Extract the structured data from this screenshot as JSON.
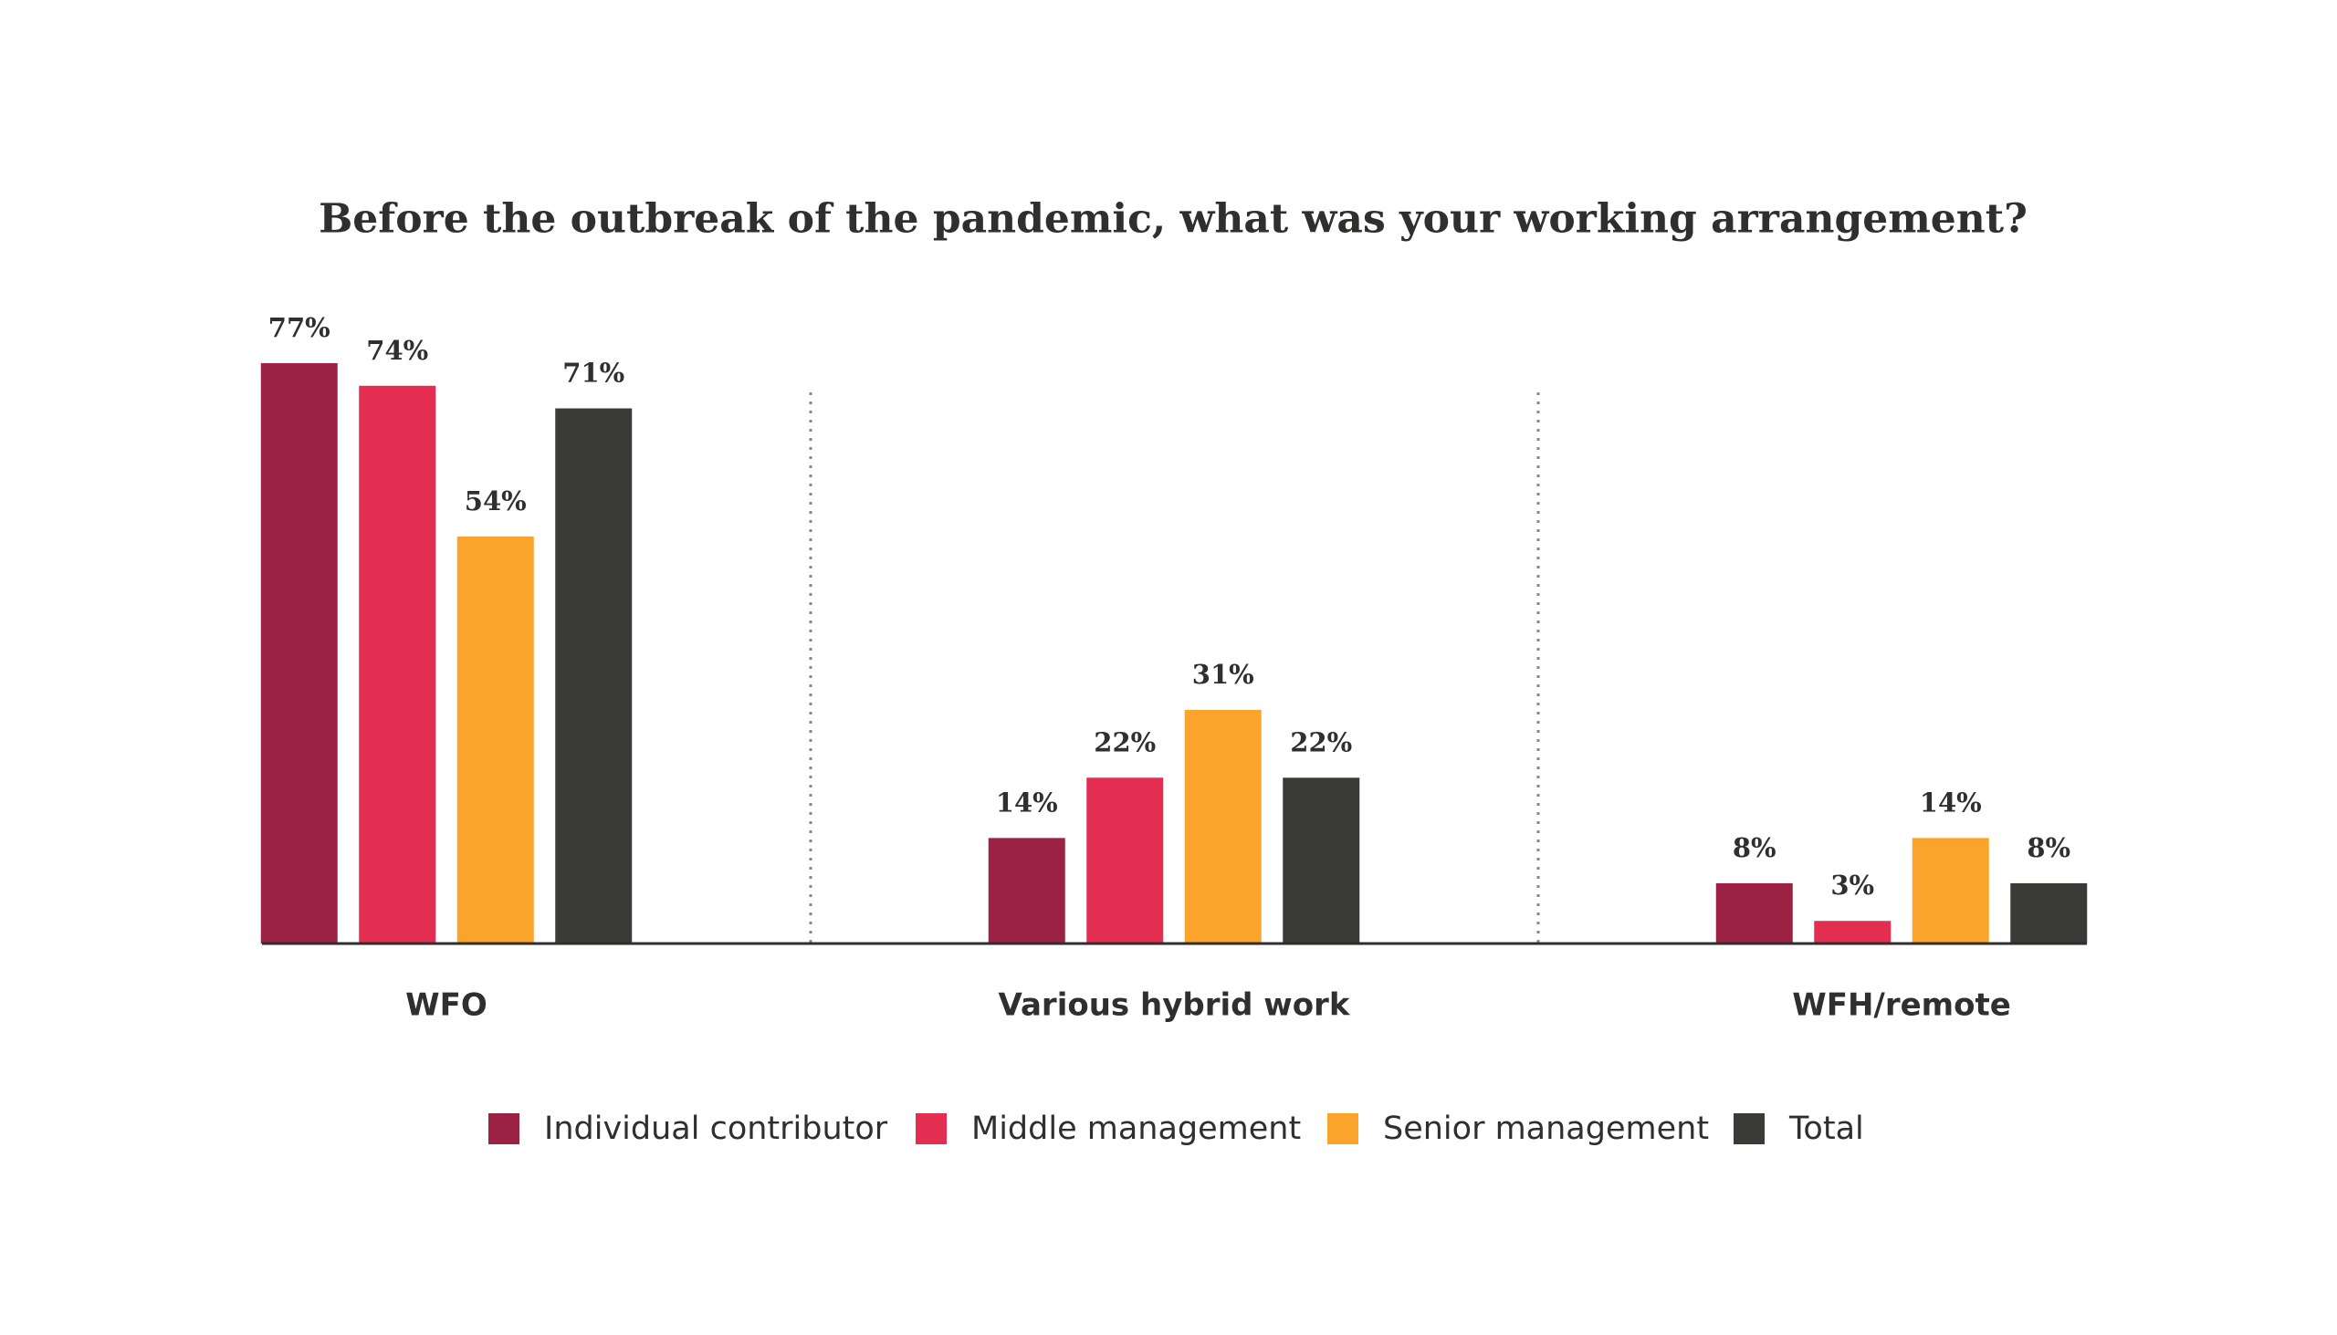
{
  "chart_data": {
    "type": "bar",
    "title": "Before the outbreak of the pandemic, what was your working arrangement?",
    "categories": [
      "WFO",
      "Various hybrid work",
      "WFH/remote"
    ],
    "series": [
      {
        "name": "Individual contributor",
        "color": "#9b2242",
        "values": [
          77,
          14,
          8
        ],
        "value_labels": [
          "77%",
          "14%",
          "8%"
        ]
      },
      {
        "name": "Middle management",
        "color": "#e32d51",
        "values": [
          74,
          22,
          3
        ],
        "value_labels": [
          "74%",
          "22%",
          "3%"
        ]
      },
      {
        "name": "Senior management",
        "color": "#fba42c",
        "values": [
          54,
          31,
          14
        ],
        "value_labels": [
          "54%",
          "31%",
          "14%"
        ]
      },
      {
        "name": "Total",
        "color": "#3a3a36",
        "values": [
          71,
          22,
          8
        ],
        "value_labels": [
          "71%",
          "22%",
          "8%"
        ]
      }
    ],
    "legend": "bottom"
  }
}
